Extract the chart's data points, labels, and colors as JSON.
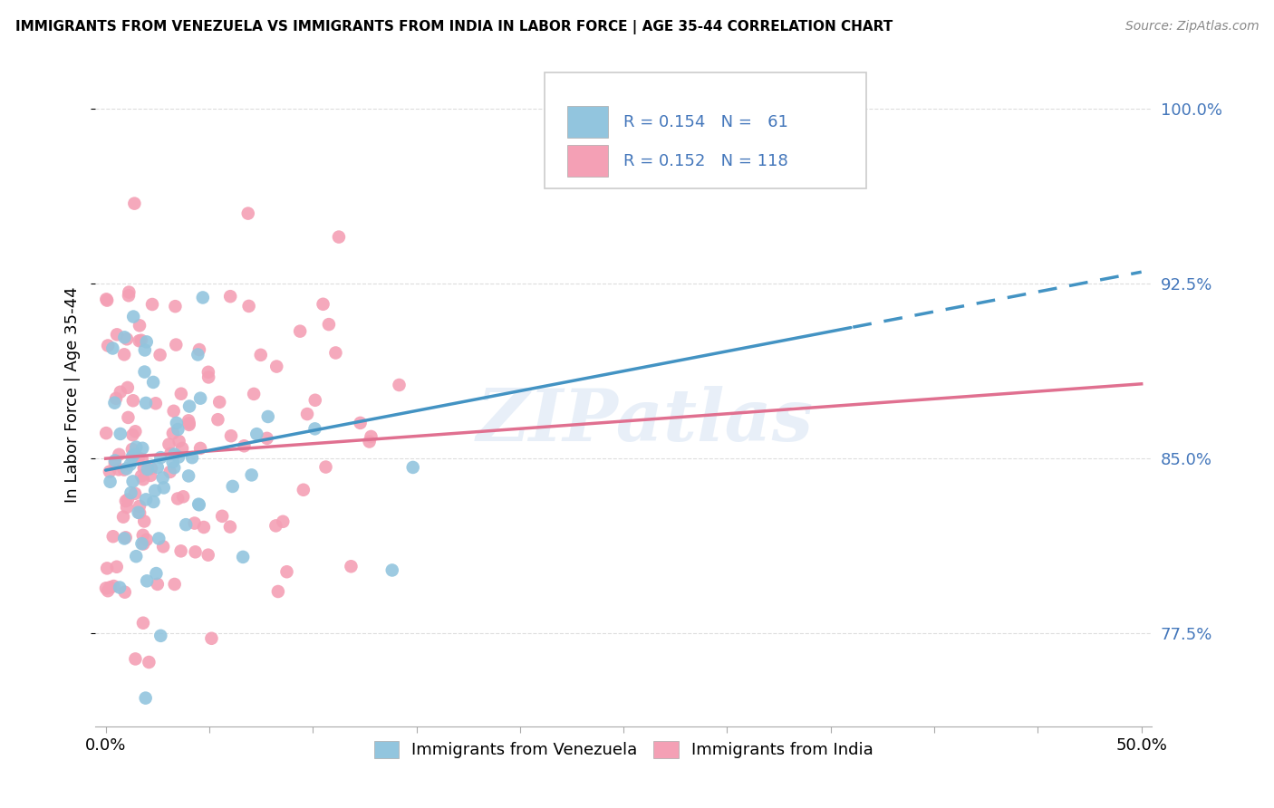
{
  "title": "IMMIGRANTS FROM VENEZUELA VS IMMIGRANTS FROM INDIA IN LABOR FORCE | AGE 35-44 CORRELATION CHART",
  "source": "Source: ZipAtlas.com",
  "ylabel": "In Labor Force | Age 35-44",
  "xlim": [
    -0.005,
    0.505
  ],
  "ylim": [
    0.735,
    1.02
  ],
  "xtick_positions": [
    0.0,
    0.05,
    0.1,
    0.15,
    0.2,
    0.25,
    0.3,
    0.35,
    0.4,
    0.45,
    0.5
  ],
  "xtick_labels_show": [
    "0.0%",
    "",
    "",
    "",
    "",
    "",
    "",
    "",
    "",
    "",
    "50.0%"
  ],
  "ytick_positions": [
    0.775,
    0.85,
    0.925,
    1.0
  ],
  "ytick_labels": [
    "77.5%",
    "85.0%",
    "92.5%",
    "100.0%"
  ],
  "legend_bottom": [
    "Immigrants from Venezuela",
    "Immigrants from India"
  ],
  "venezuela_color": "#92c5de",
  "india_color": "#f4a0b5",
  "venezuela_line_color": "#4393c3",
  "india_line_color": "#e07090",
  "watermark": "ZIPatlas",
  "R_venezuela": 0.154,
  "N_venezuela": 61,
  "R_india": 0.152,
  "N_india": 118,
  "trend_ven_x0": 0.0,
  "trend_ven_y0": 0.845,
  "trend_ven_x1": 0.5,
  "trend_ven_y1": 0.93,
  "trend_ind_x0": 0.0,
  "trend_ind_y0": 0.85,
  "trend_ind_x1": 0.5,
  "trend_ind_y1": 0.882,
  "trend_ven_solid_end": 0.36,
  "background_color": "#ffffff",
  "grid_color": "#dddddd",
  "ytick_color": "#4477bb"
}
